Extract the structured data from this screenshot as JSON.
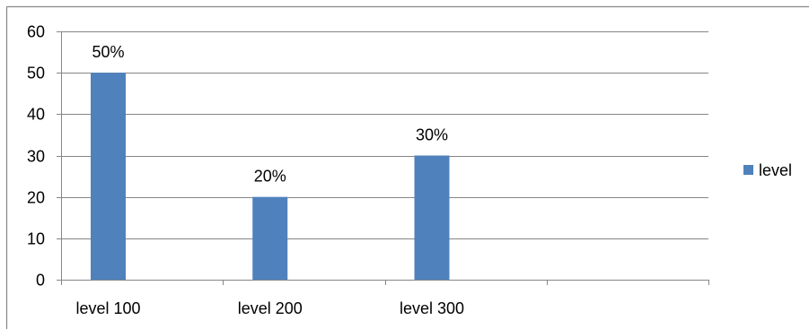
{
  "chart_data": {
    "type": "bar",
    "categories": [
      "level 100",
      "level 200",
      "level 300",
      ""
    ],
    "series": [
      {
        "name": "level",
        "values": [
          50,
          20,
          30,
          null
        ],
        "data_labels": [
          "50%",
          "20%",
          "30%",
          ""
        ],
        "color": "#4f81bd"
      }
    ],
    "yticks": [
      "0",
      "10",
      "20",
      "30",
      "40",
      "50",
      "60"
    ],
    "ylim": [
      0,
      60
    ],
    "y_step": 10,
    "grid": true,
    "legend_position": "right",
    "title": "",
    "xlabel": "",
    "ylabel": ""
  },
  "colors": {
    "bar": "#4f81bd",
    "grid": "#868686",
    "axis": "#868686",
    "frame": "#868686"
  }
}
